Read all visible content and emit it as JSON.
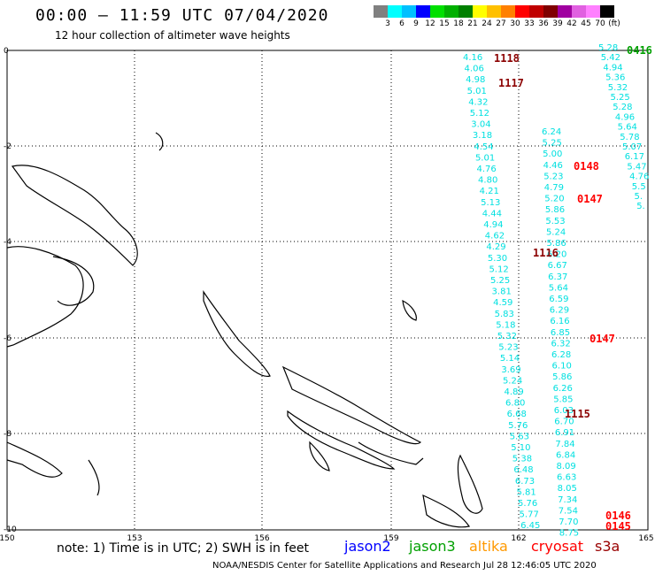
{
  "header": {
    "title": "00:00 — 11:59 UTC 07/04/2020",
    "subtitle": "12 hour collection of altimeter wave heights"
  },
  "legend": {
    "labels": [
      "3",
      "6",
      "9",
      "12",
      "15",
      "18",
      "21",
      "24",
      "27",
      "30",
      "33",
      "36",
      "39",
      "42",
      "45",
      "70",
      "(ft)"
    ],
    "colors": [
      "#808080",
      "#00ffff",
      "#00c0ff",
      "#0000ff",
      "#00e000",
      "#00b000",
      "#008000",
      "#ffff00",
      "#ffc000",
      "#ff8000",
      "#ff0000",
      "#c00000",
      "#800000",
      "#a000a0",
      "#e060e0",
      "#ff80ff",
      "#000000"
    ]
  },
  "axes": {
    "x_ticks": [
      "150",
      "153",
      "156",
      "159",
      "162",
      "165"
    ],
    "y_ticks": [
      "0",
      "-2",
      "-4",
      "-6",
      "-8",
      "-10"
    ]
  },
  "tracks": [
    {
      "color": "#00e0e0",
      "values": [
        "4.16",
        "4.06",
        "4.98",
        "5.01",
        "4.32",
        "5.12",
        "3.04",
        "3.18",
        "4.54",
        "5.01",
        "4.76",
        "4.80",
        "4.21",
        "5.13",
        "4.44",
        "4.94",
        "4.62",
        "4.29",
        "5.30",
        "5.12",
        "5.25",
        "3.81",
        "4.59",
        "5.83",
        "5.18",
        "5.32",
        "5.23",
        "5.14",
        "3.69",
        "5.24",
        "4.89",
        "6.80",
        "6.68",
        "5.76",
        "5.63",
        "5.10",
        "5.38",
        "6.48",
        "6.73",
        "5.81",
        "5.76",
        "5.77",
        "6.45"
      ]
    },
    {
      "color": "#00e0e0",
      "values": [
        "6.24",
        "5.25",
        "5.00",
        "4.46",
        "5.23",
        "4.79",
        "5.20",
        "5.86",
        "5.53",
        "5.24",
        "5.86",
        "6.20",
        "6.67",
        "6.37",
        "5.64",
        "6.59",
        "6.29",
        "6.16",
        "6.85",
        "6.32",
        "6.28",
        "6.10",
        "5.86",
        "6.26",
        "5.85",
        "6.03",
        "6.70",
        "6.91",
        "7.84",
        "6.84",
        "8.09",
        "6.63",
        "8.05",
        "7.34",
        "7.54",
        "7.70",
        "8.75"
      ]
    },
    {
      "color": "#00e0e0",
      "values": [
        "5.28",
        "5.42",
        "4.94",
        "5.36",
        "5.32",
        "5.25",
        "5.28",
        "4.96",
        "5.64",
        "5.78",
        "5.07",
        "6.17",
        "5.47",
        "4.76",
        "5.5",
        "5.",
        "5."
      ]
    }
  ],
  "pass_labels": [
    "1118",
    "1117",
    "0148",
    "0147",
    "1116",
    "0147",
    "1115",
    "0146",
    "0145",
    "0416"
  ],
  "notes": {
    "note_text": "note: 1) Time is in UTC; 2) SWH is in feet",
    "satellites": [
      {
        "name": "jason2",
        "color": "#0000ff"
      },
      {
        "name": "jason3",
        "color": "#00a000"
      },
      {
        "name": "altika",
        "color": "#ff9900"
      },
      {
        "name": "cryosat",
        "color": "#ff0000"
      },
      {
        "name": "s3a",
        "color": "#990000"
      }
    ],
    "footer": "NOAA/NESDIS Center for Satellite Applications and Research    Jul 28 12:46:05 UTC 2020"
  }
}
